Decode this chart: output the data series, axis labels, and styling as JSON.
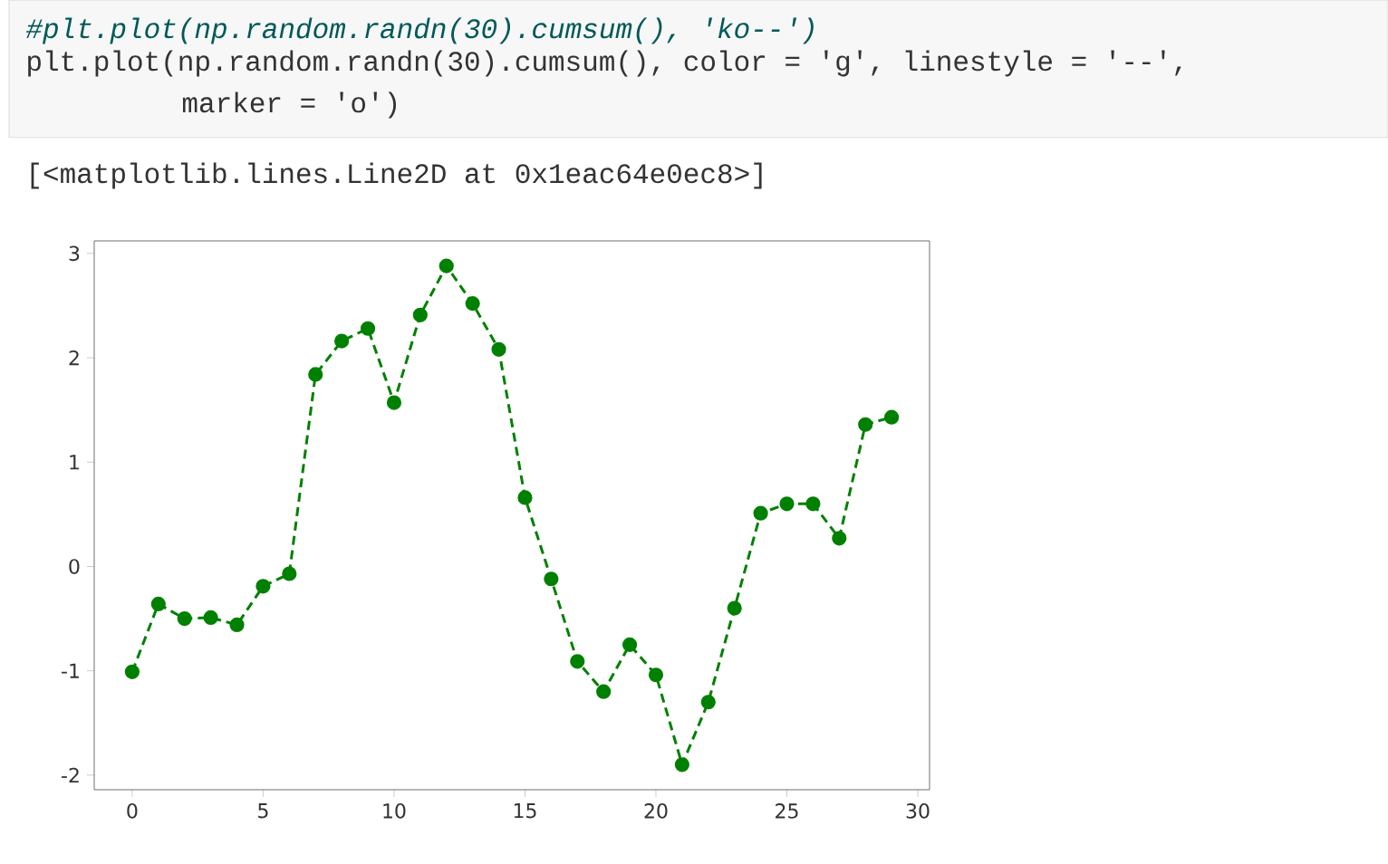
{
  "chart_data": {
    "type": "line",
    "annotations": [
      "#plt.plot(np.random.randn(30).cumsum(), 'ko--')",
      "plt.plot(np.random.randn(30).cumsum(), color = 'g', linestyle = '--',",
      "marker = 'o')",
      "[<matplotlib.lines.Line2D at 0x1eac64e0ec8>]"
    ],
    "x": [
      0,
      1,
      2,
      3,
      4,
      5,
      6,
      7,
      8,
      9,
      10,
      11,
      12,
      13,
      14,
      15,
      16,
      17,
      18,
      19,
      20,
      21,
      22,
      23,
      24,
      25,
      26,
      27,
      28,
      29
    ],
    "series": [
      {
        "color": "#008000",
        "values": [
          -1.01,
          -0.36,
          -0.5,
          -0.49,
          -0.56,
          -0.19,
          -0.07,
          1.84,
          2.16,
          2.28,
          1.57,
          2.41,
          2.88,
          2.52,
          2.08,
          0.66,
          -0.12,
          -0.91,
          -1.2,
          -0.75,
          -1.04,
          -1.9,
          -1.3,
          -0.4,
          0.51,
          0.6,
          0.6,
          0.27,
          1.36,
          1.43
        ]
      }
    ],
    "xlim": [
      -1.45,
      30.45
    ],
    "ylim": [
      -2.14,
      3.12
    ],
    "xticks": [
      0,
      5,
      10,
      15,
      20,
      25,
      30
    ],
    "yticks": [
      -2,
      -1,
      0,
      1,
      2,
      3
    ],
    "marker": "circle",
    "line_style": "dashed"
  }
}
